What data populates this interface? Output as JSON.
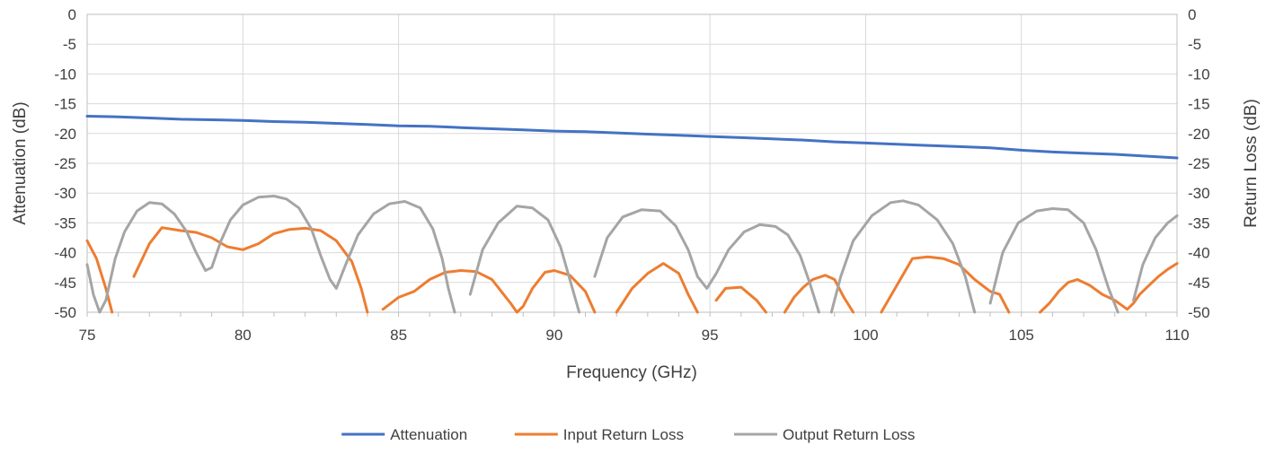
{
  "chart_data": {
    "type": "line",
    "title": "",
    "xlabel": "Frequency (GHz)",
    "ylabel": "Attenuation (dB)",
    "y2label": "Return Loss (dB)",
    "xlim": [
      75,
      110
    ],
    "ylim": [
      -50,
      0
    ],
    "y2lim": [
      -50,
      0
    ],
    "xticks": [
      "75",
      "80",
      "85",
      "90",
      "95",
      "100",
      "105",
      "110"
    ],
    "yticks": [
      "0",
      "-5",
      "-10",
      "-15",
      "-20",
      "-25",
      "-30",
      "-35",
      "-40",
      "-45",
      "-50"
    ],
    "grid": true,
    "legend_position": "bottom",
    "series": [
      {
        "name": "Attenuation",
        "color": "#4472c4",
        "axis": "left",
        "x": [
          75,
          76,
          77,
          78,
          79,
          80,
          81,
          82,
          83,
          84,
          85,
          86,
          87,
          88,
          89,
          90,
          91,
          92,
          93,
          94,
          95,
          96,
          97,
          98,
          99,
          100,
          101,
          102,
          103,
          104,
          105,
          106,
          107,
          108,
          109,
          110
        ],
        "y": [
          -17.1,
          -17.2,
          -17.4,
          -17.6,
          -17.7,
          -17.8,
          -18.0,
          -18.1,
          -18.3,
          -18.5,
          -18.7,
          -18.8,
          -19.0,
          -19.2,
          -19.4,
          -19.6,
          -19.7,
          -19.9,
          -20.1,
          -20.3,
          -20.5,
          -20.7,
          -20.9,
          -21.1,
          -21.4,
          -21.6,
          -21.8,
          -22.0,
          -22.2,
          -22.4,
          -22.8,
          -23.1,
          -23.3,
          -23.5,
          -23.8,
          -24.1
        ]
      },
      {
        "name": "Input Return Loss",
        "color": "#ed7d31",
        "axis": "right",
        "x": [
          75,
          75.3,
          75.6,
          75.8,
          76.0,
          76.2,
          76.5,
          77.0,
          77.4,
          78.0,
          78.5,
          79.0,
          79.5,
          80.0,
          80.5,
          81.0,
          81.5,
          82.0,
          82.5,
          83.0,
          83.5,
          83.8,
          84.0,
          84.2,
          84.5,
          85.0,
          85.5,
          86.0,
          86.5,
          87.0,
          87.5,
          88.0,
          88.3,
          88.6,
          88.8,
          89.0,
          89.3,
          89.7,
          90.0,
          90.5,
          91.0,
          91.3,
          91.6,
          92.0,
          92.5,
          93.0,
          93.5,
          94.0,
          94.3,
          94.6,
          94.9,
          95.2,
          95.5,
          96.0,
          96.5,
          96.8,
          97.1,
          97.4,
          97.7,
          98.0,
          98.3,
          98.7,
          99.0,
          99.3,
          99.6,
          100.0,
          100.5,
          101.0,
          101.5,
          102.0,
          102.5,
          103.0,
          103.5,
          104.0,
          104.3,
          104.6,
          105.0,
          105.3,
          105.6,
          105.9,
          106.2,
          106.5,
          106.8,
          107.2,
          107.6,
          108.0,
          108.4,
          108.6,
          108.8,
          109.1,
          109.4,
          109.7,
          110.0
        ],
        "y": [
          -38,
          -41,
          -46,
          -50,
          null,
          null,
          -44,
          -38.5,
          -35.8,
          -36.3,
          -36.6,
          -37.5,
          -39.0,
          -39.5,
          -38.5,
          -36.8,
          -36.1,
          -35.9,
          -36.3,
          -38.0,
          -41.5,
          -46.0,
          -50,
          null,
          -49.5,
          -47.5,
          -46.5,
          -44.5,
          -43.3,
          -43.0,
          -43.2,
          -44.5,
          -46.5,
          -48.5,
          -50.0,
          -49.0,
          -46.0,
          -43.3,
          -43.0,
          -43.8,
          -46.5,
          -50,
          null,
          -50,
          -46.0,
          -43.5,
          -41.8,
          -43.5,
          -47,
          -50,
          null,
          -48,
          -46.0,
          -45.8,
          -48.0,
          -50.0,
          null,
          -50,
          -47.5,
          -45.8,
          -44.5,
          -43.8,
          -44.5,
          -47.5,
          -50,
          null,
          -50,
          -45.5,
          -41.0,
          -40.7,
          -41.0,
          -42.0,
          -44.5,
          -46.5,
          -47.0,
          -50,
          null,
          null,
          -50,
          -48.5,
          -46.5,
          -45.0,
          -44.5,
          -45.5,
          -47.0,
          -48.0,
          -49.5,
          -48.5,
          -47.0,
          -45.5,
          -44.0,
          -42.8,
          -41.8
        ]
      },
      {
        "name": "Output Return Loss",
        "color": "#a5a5a5",
        "axis": "right",
        "x": [
          75,
          75.2,
          75.4,
          75.6,
          75.9,
          76.2,
          76.6,
          77.0,
          77.4,
          77.8,
          78.2,
          78.5,
          78.8,
          79.0,
          79.3,
          79.6,
          80.0,
          80.5,
          81.0,
          81.4,
          81.8,
          82.2,
          82.5,
          82.8,
          83.0,
          83.3,
          83.7,
          84.2,
          84.7,
          85.2,
          85.7,
          86.1,
          86.4,
          86.6,
          86.8,
          87.0,
          87.3,
          87.7,
          88.2,
          88.8,
          89.3,
          89.8,
          90.2,
          90.5,
          90.8,
          91.0,
          91.3,
          91.7,
          92.2,
          92.8,
          93.4,
          93.9,
          94.3,
          94.6,
          94.9,
          95.2,
          95.6,
          96.1,
          96.6,
          97.1,
          97.5,
          97.9,
          98.2,
          98.5,
          98.7,
          98.9,
          99.2,
          99.6,
          100.2,
          100.8,
          101.2,
          101.7,
          102.3,
          102.8,
          103.2,
          103.5,
          103.7,
          104.0,
          104.4,
          104.9,
          105.5,
          106.0,
          106.5,
          107.0,
          107.4,
          107.8,
          108.1,
          108.3,
          108.6,
          108.9,
          109.3,
          109.7,
          110.0
        ],
        "y": [
          -42,
          -47,
          -50,
          -48,
          -41,
          -36.5,
          -33.0,
          -31.6,
          -31.8,
          -33.5,
          -36.5,
          -40.0,
          -43.0,
          -42.5,
          -38.0,
          -34.5,
          -32.0,
          -30.7,
          -30.5,
          -31.0,
          -32.5,
          -36.0,
          -40.5,
          -44.5,
          -46.0,
          -42.0,
          -37.0,
          -33.5,
          -31.8,
          -31.4,
          -32.5,
          -36.0,
          -41.0,
          -46.0,
          -50,
          null,
          -47.0,
          -39.5,
          -35.0,
          -32.2,
          -32.5,
          -34.5,
          -39.0,
          -44.5,
          -50,
          null,
          -44.0,
          -37.5,
          -34.0,
          -32.8,
          -33.0,
          -35.5,
          -39.5,
          -44.0,
          -46.0,
          -43.5,
          -39.5,
          -36.5,
          -35.3,
          -35.6,
          -37.0,
          -40.5,
          -45.0,
          -50,
          null,
          -50,
          -44.0,
          -38.0,
          -33.8,
          -31.6,
          -31.3,
          -32.0,
          -34.5,
          -38.5,
          -44.0,
          -50,
          null,
          -48.5,
          -40.0,
          -35.0,
          -33.0,
          -32.6,
          -32.8,
          -35.0,
          -39.5,
          -46.0,
          -50,
          null,
          -48.0,
          -42.0,
          -37.5,
          -35.0,
          -33.8
        ]
      }
    ]
  }
}
